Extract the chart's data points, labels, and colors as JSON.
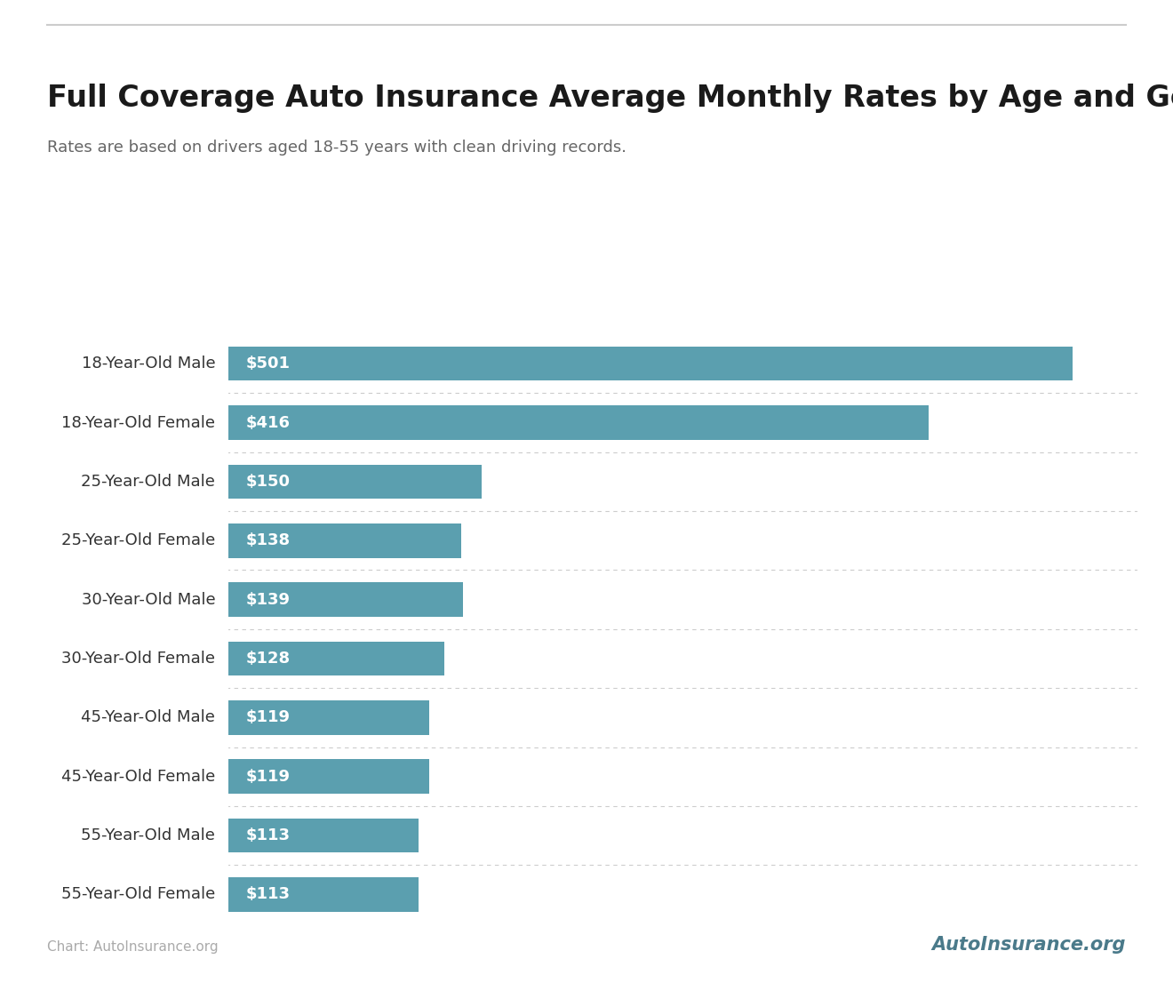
{
  "title": "Full Coverage Auto Insurance Average Monthly Rates by Age and Gender",
  "subtitle": "Rates are based on drivers aged 18-55 years with clean driving records.",
  "categories": [
    "18-Year-Old Male",
    "18-Year-Old Female",
    "25-Year-Old Male",
    "25-Year-Old Female",
    "30-Year-Old Male",
    "30-Year-Old Female",
    "45-Year-Old Male",
    "45-Year-Old Female",
    "55-Year-Old Male",
    "55-Year-Old Female"
  ],
  "values": [
    501,
    416,
    150,
    138,
    139,
    128,
    119,
    119,
    113,
    113
  ],
  "bar_color": "#5b9faf",
  "label_color": "#ffffff",
  "value_prefix": "$",
  "background_color": "#ffffff",
  "title_color": "#1a1a1a",
  "subtitle_color": "#666666",
  "category_label_color": "#333333",
  "footer_text": "Chart: AutoInsurance.org",
  "footer_color": "#aaaaaa",
  "top_border_color": "#cccccc",
  "separator_color": "#cccccc",
  "bar_height": 0.58,
  "xlim_max": 540,
  "title_fontsize": 24,
  "subtitle_fontsize": 13,
  "category_fontsize": 13,
  "value_fontsize": 13,
  "footer_fontsize": 11
}
